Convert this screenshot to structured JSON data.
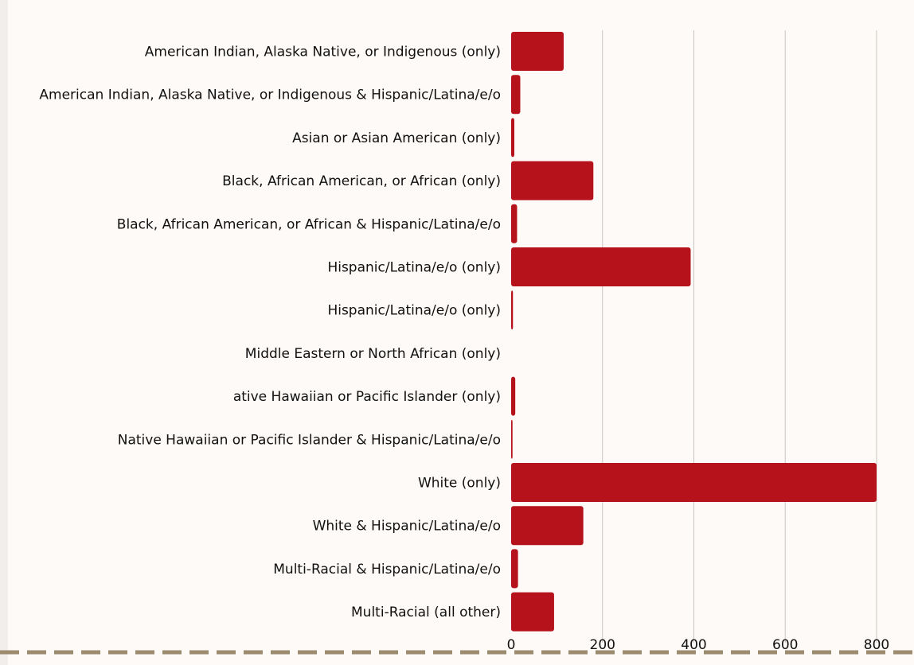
{
  "chart_data": {
    "type": "bar",
    "orientation": "horizontal",
    "categories": [
      "American Indian, Alaska Native, or Indigenous (only)",
      "American Indian, Alaska Native, or Indigenous & Hispanic/Latina/e/o",
      "Asian or Asian American (only)",
      "Black, African American, or African (only)",
      "Black, African American, or African & Hispanic/Latina/e/o",
      "Hispanic/Latina/e/o (only)",
      "Hispanic/Latina/e/o (only)",
      "Middle Eastern or North African (only)",
      "ative Hawaiian or Pacific Islander (only)",
      "Native Hawaiian or Pacific Islander & Hispanic/Latina/e/o",
      "White (only)",
      "White & Hispanic/Latina/e/o",
      "Multi-Racial & Hispanic/Latina/e/o",
      "Multi-Racial (all other)"
    ],
    "values": [
      115,
      20,
      7,
      180,
      13,
      393,
      4,
      0,
      9,
      3,
      800,
      158,
      15,
      94
    ],
    "xlim": [
      0,
      800
    ],
    "xticks": [
      "0",
      "200",
      "400",
      "600",
      "800"
    ],
    "grid": "vertical",
    "legend": "none",
    "colors": {
      "bar": "#b5121b",
      "grid": "#c9c4bf",
      "baseline": "#9c8b6e",
      "background": "#fdfaf7"
    }
  }
}
